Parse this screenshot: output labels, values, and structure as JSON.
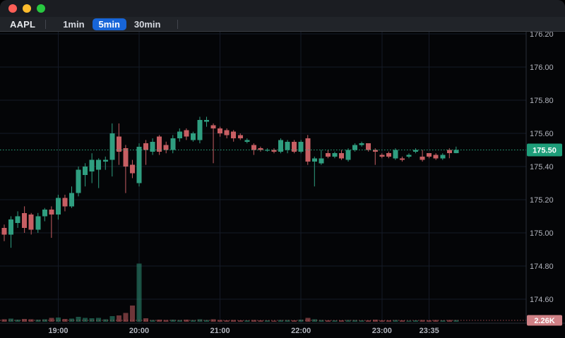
{
  "window": {
    "controls": [
      {
        "name": "close",
        "color": "#ff5f57"
      },
      {
        "name": "minimize",
        "color": "#febc2e"
      },
      {
        "name": "zoom",
        "color": "#28c840"
      }
    ]
  },
  "toolbar": {
    "symbol": "AAPL",
    "timeframes": [
      {
        "label": "1min",
        "active": false
      },
      {
        "label": "5min",
        "active": true
      },
      {
        "label": "30min",
        "active": false
      }
    ]
  },
  "price_line": {
    "value": "175.50",
    "badge_color": "#1e9e7a",
    "line_color": "#2aa981"
  },
  "volume_line": {
    "value": "2.26K",
    "badge_color": "#d08186",
    "line_color": "#c75e63"
  },
  "chart_data": {
    "type": "candlestick",
    "symbol": "AAPL",
    "interval": "5min",
    "start_time": "18:20",
    "interval_minutes": 5,
    "grid": true,
    "legend_position": "none",
    "price_axis_ticks": [
      "176.20",
      "176.00",
      "175.80",
      "175.60",
      "175.40",
      "175.20",
      "175.00",
      "174.80",
      "174.60"
    ],
    "price_axis_values": [
      176.2,
      176.0,
      175.8,
      175.6,
      175.4,
      175.2,
      175.0,
      174.8,
      174.6
    ],
    "time_ticks": [
      {
        "label": "19:00",
        "candle_index": 8
      },
      {
        "label": "20:00",
        "candle_index": 20
      },
      {
        "label": "21:00",
        "candle_index": 32
      },
      {
        "label": "22:00",
        "candle_index": 44
      },
      {
        "label": "23:00",
        "candle_index": 56
      },
      {
        "label": "23:35",
        "candle_index": 63
      }
    ],
    "last_price": 175.5,
    "last_volume_label": "2.26K",
    "colors": {
      "up": "#2f9e80",
      "down": "#c75e63",
      "volume_up": "rgba(47,158,128,0.5)",
      "volume_down": "rgba(199,94,99,0.55)",
      "grid": "#151a27",
      "axis_text": "#b2b5be",
      "axis_line": "#2a2e39",
      "background": "#040507"
    },
    "columns": [
      "open",
      "high",
      "low",
      "close",
      "volume_k"
    ],
    "candles": [
      [
        175.03,
        175.05,
        174.95,
        174.99,
        3.2
      ],
      [
        174.99,
        175.1,
        174.91,
        175.08,
        4.1
      ],
      [
        175.06,
        175.13,
        175.03,
        175.1,
        2.8
      ],
      [
        175.12,
        175.16,
        175.0,
        175.03,
        3.5
      ],
      [
        175.11,
        175.12,
        174.99,
        175.02,
        3.0
      ],
      [
        175.02,
        175.12,
        175.0,
        175.1,
        2.6
      ],
      [
        175.1,
        175.15,
        175.07,
        175.14,
        3.4
      ],
      [
        175.14,
        175.16,
        174.97,
        175.11,
        4.8
      ],
      [
        175.11,
        175.23,
        175.08,
        175.21,
        5.5
      ],
      [
        175.21,
        175.23,
        175.13,
        175.16,
        3.6
      ],
      [
        175.16,
        175.28,
        175.15,
        175.24,
        4.2
      ],
      [
        175.24,
        175.4,
        175.22,
        175.38,
        6.4
      ],
      [
        175.35,
        175.42,
        175.28,
        175.4,
        5.1
      ],
      [
        175.37,
        175.48,
        175.3,
        175.44,
        4.4
      ],
      [
        175.38,
        175.45,
        175.27,
        175.44,
        5.0
      ],
      [
        175.43,
        175.46,
        175.38,
        175.44,
        3.2
      ],
      [
        175.44,
        175.66,
        175.34,
        175.6,
        7.3
      ],
      [
        175.58,
        175.66,
        175.41,
        175.49,
        8.1
      ],
      [
        175.51,
        175.53,
        175.24,
        175.4,
        11.5
      ],
      [
        175.41,
        175.44,
        175.33,
        175.36,
        20.8
      ],
      [
        175.3,
        175.54,
        175.28,
        175.52,
        75.2
      ],
      [
        175.54,
        175.56,
        175.41,
        175.5,
        4.6
      ],
      [
        175.49,
        175.57,
        175.47,
        175.55,
        2.4
      ],
      [
        175.58,
        175.59,
        175.47,
        175.49,
        2.9
      ],
      [
        175.53,
        175.55,
        175.48,
        175.5,
        2.2
      ],
      [
        175.5,
        175.59,
        175.48,
        175.57,
        2.6
      ],
      [
        175.57,
        175.63,
        175.55,
        175.61,
        2.3
      ],
      [
        175.62,
        175.63,
        175.56,
        175.58,
        2.8
      ],
      [
        175.56,
        175.61,
        175.55,
        175.6,
        2.1
      ],
      [
        175.56,
        175.7,
        175.54,
        175.68,
        3.4
      ],
      [
        175.67,
        175.7,
        175.64,
        175.68,
        2.2
      ],
      [
        175.65,
        175.66,
        175.42,
        175.63,
        3.1
      ],
      [
        175.63,
        175.64,
        175.58,
        175.6,
        2.5
      ],
      [
        175.62,
        175.63,
        175.57,
        175.59,
        2.0
      ],
      [
        175.61,
        175.62,
        175.55,
        175.57,
        2.3
      ],
      [
        175.59,
        175.6,
        175.56,
        175.57,
        1.9
      ],
      [
        175.55,
        175.57,
        175.54,
        175.56,
        1.7
      ],
      [
        175.53,
        175.54,
        175.47,
        175.5,
        2.1
      ],
      [
        175.51,
        175.52,
        175.49,
        175.5,
        1.8
      ],
      [
        175.5,
        175.51,
        175.49,
        175.5,
        1.6
      ],
      [
        175.5,
        175.51,
        175.48,
        175.49,
        1.5
      ],
      [
        175.49,
        175.57,
        175.48,
        175.56,
        2.4
      ],
      [
        175.5,
        175.56,
        175.48,
        175.55,
        2.2
      ],
      [
        175.55,
        175.56,
        175.48,
        175.49,
        2.0
      ],
      [
        175.49,
        175.56,
        175.48,
        175.55,
        2.6
      ],
      [
        175.57,
        175.59,
        175.41,
        175.43,
        4.8
      ],
      [
        175.43,
        175.46,
        175.28,
        175.45,
        3.2
      ],
      [
        175.42,
        175.5,
        175.41,
        175.45,
        2.1
      ],
      [
        175.48,
        175.5,
        175.45,
        175.46,
        1.8
      ],
      [
        175.46,
        175.49,
        175.45,
        175.48,
        1.6
      ],
      [
        175.48,
        175.5,
        175.44,
        175.45,
        2.0
      ],
      [
        175.44,
        175.51,
        175.43,
        175.5,
        2.4
      ],
      [
        175.5,
        175.54,
        175.49,
        175.53,
        2.2
      ],
      [
        175.53,
        175.55,
        175.52,
        175.54,
        1.7
      ],
      [
        175.54,
        175.54,
        175.49,
        175.5,
        1.9
      ],
      [
        175.5,
        175.51,
        175.41,
        175.49,
        2.6
      ],
      [
        175.47,
        175.48,
        175.45,
        175.46,
        1.8
      ],
      [
        175.48,
        175.49,
        175.45,
        175.46,
        2.0
      ],
      [
        175.45,
        175.51,
        175.44,
        175.5,
        2.3
      ],
      [
        175.45,
        175.46,
        175.43,
        175.44,
        1.6
      ],
      [
        175.46,
        175.48,
        175.45,
        175.47,
        1.5
      ],
      [
        175.49,
        175.51,
        175.48,
        175.5,
        1.7
      ],
      [
        175.46,
        175.5,
        175.43,
        175.44,
        2.4
      ],
      [
        175.48,
        175.48,
        175.45,
        175.46,
        1.9
      ],
      [
        175.47,
        175.48,
        175.44,
        175.45,
        2.1
      ],
      [
        175.45,
        175.48,
        175.44,
        175.47,
        1.8
      ],
      [
        175.5,
        175.51,
        175.45,
        175.48,
        2.5
      ],
      [
        175.48,
        175.52,
        175.48,
        175.5,
        2.26
      ]
    ]
  }
}
